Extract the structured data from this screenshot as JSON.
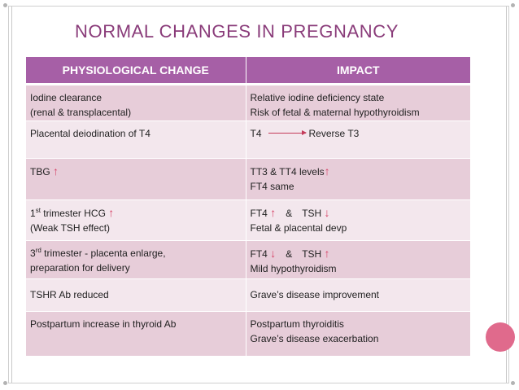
{
  "title": "NORMAL CHANGES IN PREGNANCY",
  "headers": {
    "change": "PHYSIOLOGICAL CHANGE",
    "impact": "IMPACT"
  },
  "rows": [
    {
      "change": [
        "Iodine clearance",
        "(renal & transplacental)"
      ],
      "impact": [
        "Relative iodine deficiency state",
        "Risk of fetal & maternal hypothyroidism"
      ]
    },
    {
      "change": [
        "Placental deiodination of T4"
      ],
      "impact_from": "T4",
      "impact_to": "Reverse T3"
    },
    {
      "change": [
        "TBG"
      ],
      "impact": [
        "TT3 & TT4 levels",
        "FT4 same"
      ]
    },
    {
      "change_num": "1",
      "change_sup": "st",
      "change_rest": " trimester HCG",
      "change_line2": "(Weak TSH effect)",
      "impact_a": "FT4",
      "impact_amp": "&",
      "impact_b": "TSH",
      "impact_line2": "Fetal & placental devp"
    },
    {
      "change_num": "3",
      "change_sup": "rd",
      "change_rest": " trimester - placenta  enlarge,",
      "change_line2": "preparation for delivery",
      "impact_a": "FT4",
      "impact_amp": "&",
      "impact_b": "TSH",
      "impact_line2": "Mild hypothyroidism"
    },
    {
      "change": [
        "TSHR Ab reduced"
      ],
      "impact": [
        "Grave’s disease improvement"
      ]
    },
    {
      "change": [
        "Postpartum  increase in thyroid Ab"
      ],
      "impact": [
        "Postpartum thyroiditis",
        "Grave’s disease exacerbation"
      ]
    }
  ],
  "symbols": {
    "up": "↑",
    "down": "↓"
  },
  "colors": {
    "title": "#8a3c7a",
    "header_bg": "#a65fa6",
    "row_odd": "#e7cdd9",
    "row_even": "#f3e7ed",
    "arrow": "#d64468",
    "accent_circle": "#e06a8c"
  }
}
